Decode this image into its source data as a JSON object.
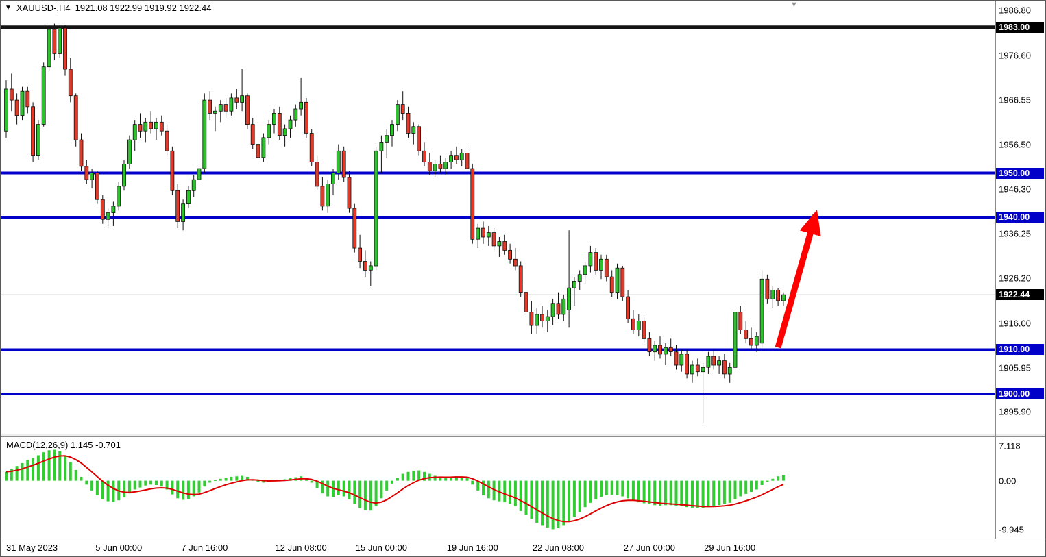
{
  "header": {
    "dropdown_icon": "▼",
    "symbol_period": "XAUUSD-,H4",
    "ohlc": "1921.08 1922.99 1919.92 1922.44"
  },
  "icons": {
    "shift_marker": "▼"
  },
  "indicator_header": {
    "text": "MACD(12,26,9) 1.145 -0.701"
  },
  "x_axis": {
    "labels": [
      {
        "text": "31 May 2023",
        "bar": 0
      },
      {
        "text": "5 Jun 00:00",
        "bar": 21
      },
      {
        "text": "7 Jun 16:00",
        "bar": 37
      },
      {
        "text": "12 Jun 08:00",
        "bar": 55
      },
      {
        "text": "15 Jun 00:00",
        "bar": 70
      },
      {
        "text": "19 Jun 16:00",
        "bar": 87
      },
      {
        "text": "22 Jun 08:00",
        "bar": 103
      },
      {
        "text": "27 Jun 00:00",
        "bar": 120
      },
      {
        "text": "29 Jun 16:00",
        "bar": 135
      }
    ]
  },
  "chart_data": [
    {
      "type": "candlestick",
      "symbol": "XAUUSD-",
      "timeframe": "H4",
      "current_bar": {
        "open": 1921.08,
        "high": 1922.99,
        "low": 1919.92,
        "close": 1922.44
      },
      "ylim": [
        1891,
        1989
      ],
      "up_color": "#2cc22c",
      "down_color": "#e23a2a",
      "wick_color": "#111111",
      "current_price": 1922.44,
      "price_ticks": [
        {
          "value": "1986.80",
          "price": 1986.8,
          "style": "plain"
        },
        {
          "value": "1983.00",
          "price": 1983.0,
          "style": "black-box"
        },
        {
          "value": "1976.60",
          "price": 1976.6,
          "style": "plain"
        },
        {
          "value": "1966.55",
          "price": 1966.55,
          "style": "plain"
        },
        {
          "value": "1956.50",
          "price": 1956.5,
          "style": "plain"
        },
        {
          "value": "1950.00",
          "price": 1950.0,
          "style": "blue-box"
        },
        {
          "value": "1946.30",
          "price": 1946.3,
          "style": "plain"
        },
        {
          "value": "1940.00",
          "price": 1940.0,
          "style": "blue-box"
        },
        {
          "value": "1936.25",
          "price": 1936.25,
          "style": "plain"
        },
        {
          "value": "1926.20",
          "price": 1926.2,
          "style": "plain"
        },
        {
          "value": "1922.44",
          "price": 1922.44,
          "style": "black-box"
        },
        {
          "value": "1916.00",
          "price": 1916.0,
          "style": "plain"
        },
        {
          "value": "1910.00",
          "price": 1910.0,
          "style": "blue-box"
        },
        {
          "value": "1905.95",
          "price": 1905.95,
          "style": "plain"
        },
        {
          "value": "1900.00",
          "price": 1900.0,
          "style": "blue-box"
        },
        {
          "value": "1895.90",
          "price": 1895.9,
          "style": "plain"
        }
      ],
      "hlines": [
        {
          "price": 1983.0,
          "color": "#141414",
          "width": 5
        },
        {
          "price": 1950.0,
          "color": "#0000C8",
          "width": 4
        },
        {
          "price": 1940.0,
          "color": "#0000C8",
          "width": 4
        },
        {
          "price": 1910.0,
          "color": "#0000C8",
          "width": 4
        },
        {
          "price": 1900.0,
          "color": "#0000C8",
          "width": 4
        }
      ],
      "annotations": [
        {
          "type": "arrow",
          "color": "#FF0000",
          "from": {
            "bar": 144,
            "price": 1910.5
          },
          "to": {
            "bar": 151,
            "price": 1940.5
          }
        }
      ],
      "candles": [
        [
          1959.5,
          1971.0,
          1958.0,
          1969.0
        ],
        [
          1969.0,
          1972.5,
          1964.0,
          1966.5
        ],
        [
          1966.5,
          1968.0,
          1961.0,
          1963.0
        ],
        [
          1963.0,
          1969.5,
          1962.0,
          1968.5
        ],
        [
          1968.5,
          1969.5,
          1963.5,
          1965.0
        ],
        [
          1965.0,
          1966.0,
          1952.5,
          1954.0
        ],
        [
          1954.0,
          1962.0,
          1953.0,
          1961.0
        ],
        [
          1961.0,
          1975.0,
          1960.5,
          1974.0
        ],
        [
          1974.0,
          1983.5,
          1973.0,
          1982.5
        ],
        [
          1982.5,
          1983.8,
          1975.5,
          1977.0
        ],
        [
          1977.0,
          1983.5,
          1976.0,
          1982.8
        ],
        [
          1982.8,
          1983.5,
          1972.0,
          1973.5
        ],
        [
          1973.5,
          1976.0,
          1966.0,
          1967.5
        ],
        [
          1967.5,
          1968.0,
          1956.0,
          1957.5
        ],
        [
          1957.5,
          1959.0,
          1950.5,
          1951.5
        ],
        [
          1951.5,
          1953.0,
          1947.5,
          1948.5
        ],
        [
          1948.5,
          1951.0,
          1946.5,
          1950.0
        ],
        [
          1950.0,
          1950.5,
          1943.0,
          1944.0
        ],
        [
          1944.0,
          1945.0,
          1938.5,
          1939.5
        ],
        [
          1939.5,
          1942.0,
          1937.5,
          1941.0
        ],
        [
          1941.0,
          1943.5,
          1938.0,
          1942.5
        ],
        [
          1942.5,
          1948.0,
          1941.5,
          1947.0
        ],
        [
          1947.0,
          1953.0,
          1946.0,
          1952.0
        ],
        [
          1952.0,
          1958.5,
          1951.0,
          1957.5
        ],
        [
          1957.5,
          1962.0,
          1955.0,
          1961.0
        ],
        [
          1961.0,
          1963.5,
          1958.0,
          1959.5
        ],
        [
          1959.5,
          1962.5,
          1957.0,
          1961.5
        ],
        [
          1961.5,
          1964.0,
          1959.0,
          1960.0
        ],
        [
          1960.0,
          1962.5,
          1957.5,
          1961.5
        ],
        [
          1961.5,
          1963.0,
          1958.5,
          1959.5
        ],
        [
          1959.5,
          1961.0,
          1954.0,
          1955.0
        ],
        [
          1955.0,
          1956.0,
          1945.0,
          1946.0
        ],
        [
          1946.0,
          1947.5,
          1937.5,
          1939.0
        ],
        [
          1939.0,
          1944.0,
          1937.0,
          1943.0
        ],
        [
          1943.0,
          1947.0,
          1942.0,
          1946.0
        ],
        [
          1946.0,
          1949.5,
          1944.5,
          1948.5
        ],
        [
          1948.5,
          1952.0,
          1947.5,
          1951.0
        ],
        [
          1951.0,
          1968.0,
          1950.0,
          1966.5
        ],
        [
          1966.5,
          1968.5,
          1962.0,
          1963.5
        ],
        [
          1963.5,
          1965.0,
          1959.5,
          1964.0
        ],
        [
          1964.0,
          1966.5,
          1961.5,
          1965.5
        ],
        [
          1965.5,
          1967.0,
          1962.5,
          1964.0
        ],
        [
          1964.0,
          1968.0,
          1963.0,
          1967.0
        ],
        [
          1967.0,
          1969.0,
          1964.5,
          1966.0
        ],
        [
          1966.0,
          1973.5,
          1964.0,
          1967.5
        ],
        [
          1967.5,
          1968.0,
          1960.0,
          1961.0
        ],
        [
          1961.0,
          1962.5,
          1955.5,
          1956.5
        ],
        [
          1956.5,
          1958.0,
          1952.0,
          1953.5
        ],
        [
          1953.5,
          1959.0,
          1952.5,
          1958.0
        ],
        [
          1958.0,
          1962.0,
          1956.5,
          1961.0
        ],
        [
          1961.0,
          1964.5,
          1959.0,
          1963.5
        ],
        [
          1963.5,
          1965.0,
          1957.5,
          1958.5
        ],
        [
          1958.5,
          1961.0,
          1956.0,
          1960.0
        ],
        [
          1960.0,
          1963.0,
          1958.0,
          1962.0
        ],
        [
          1962.0,
          1965.5,
          1960.5,
          1964.5
        ],
        [
          1964.5,
          1971.5,
          1963.0,
          1966.0
        ],
        [
          1966.0,
          1967.0,
          1958.0,
          1959.0
        ],
        [
          1959.0,
          1960.0,
          1951.5,
          1952.5
        ],
        [
          1952.5,
          1954.0,
          1946.0,
          1947.0
        ],
        [
          1947.0,
          1949.0,
          1941.5,
          1942.5
        ],
        [
          1942.5,
          1948.5,
          1941.0,
          1947.5
        ],
        [
          1947.5,
          1951.0,
          1945.0,
          1950.0
        ],
        [
          1950.0,
          1956.5,
          1948.5,
          1955.0
        ],
        [
          1955.0,
          1956.0,
          1948.0,
          1949.0
        ],
        [
          1949.0,
          1950.5,
          1941.0,
          1942.0
        ],
        [
          1942.0,
          1943.0,
          1932.0,
          1933.0
        ],
        [
          1933.0,
          1936.0,
          1928.5,
          1930.0
        ],
        [
          1930.0,
          1932.5,
          1926.5,
          1928.0
        ],
        [
          1928.0,
          1930.0,
          1924.5,
          1929.0
        ],
        [
          1929.0,
          1956.0,
          1928.0,
          1955.0
        ],
        [
          1955.0,
          1958.5,
          1950.0,
          1957.0
        ],
        [
          1957.0,
          1960.0,
          1953.5,
          1958.5
        ],
        [
          1958.5,
          1962.0,
          1956.0,
          1961.0
        ],
        [
          1961.0,
          1966.5,
          1959.5,
          1965.5
        ],
        [
          1965.5,
          1968.5,
          1962.0,
          1963.5
        ],
        [
          1963.5,
          1965.0,
          1958.0,
          1959.0
        ],
        [
          1959.0,
          1961.5,
          1956.5,
          1960.5
        ],
        [
          1960.5,
          1961.0,
          1954.0,
          1955.0
        ],
        [
          1955.0,
          1957.0,
          1951.5,
          1952.5
        ],
        [
          1952.5,
          1954.5,
          1949.5,
          1950.5
        ],
        [
          1950.5,
          1953.0,
          1949.0,
          1952.0
        ],
        [
          1952.0,
          1954.0,
          1950.0,
          1951.0
        ],
        [
          1951.0,
          1953.5,
          1949.5,
          1952.5
        ],
        [
          1952.5,
          1955.0,
          1951.0,
          1954.0
        ],
        [
          1954.0,
          1956.0,
          1952.0,
          1953.0
        ],
        [
          1953.0,
          1955.5,
          1951.5,
          1954.5
        ],
        [
          1954.5,
          1956.5,
          1950.0,
          1951.0
        ],
        [
          1951.0,
          1952.0,
          1934.0,
          1935.0
        ],
        [
          1935.0,
          1938.5,
          1933.0,
          1937.5
        ],
        [
          1937.5,
          1939.0,
          1934.0,
          1935.5
        ],
        [
          1935.5,
          1938.0,
          1933.5,
          1936.5
        ],
        [
          1936.5,
          1937.5,
          1932.5,
          1933.5
        ],
        [
          1933.5,
          1935.5,
          1931.0,
          1934.5
        ],
        [
          1934.5,
          1936.0,
          1931.5,
          1932.5
        ],
        [
          1932.5,
          1934.0,
          1929.5,
          1930.5
        ],
        [
          1930.5,
          1933.0,
          1928.0,
          1929.0
        ],
        [
          1929.0,
          1930.0,
          1922.0,
          1923.0
        ],
        [
          1923.0,
          1925.0,
          1917.5,
          1918.5
        ],
        [
          1918.5,
          1921.0,
          1913.5,
          1915.5
        ],
        [
          1915.5,
          1919.5,
          1913.5,
          1918.0
        ],
        [
          1918.0,
          1920.0,
          1915.0,
          1916.5
        ],
        [
          1916.5,
          1919.0,
          1914.0,
          1917.5
        ],
        [
          1917.5,
          1921.5,
          1915.5,
          1920.5
        ],
        [
          1920.5,
          1923.0,
          1917.0,
          1918.0
        ],
        [
          1918.0,
          1922.5,
          1916.5,
          1921.5
        ],
        [
          1919.0,
          1937.0,
          1915.0,
          1924.0
        ],
        [
          1924.0,
          1926.5,
          1920.0,
          1925.5
        ],
        [
          1925.5,
          1928.0,
          1923.5,
          1927.0
        ],
        [
          1927.0,
          1930.0,
          1925.0,
          1929.0
        ],
        [
          1929.0,
          1933.5,
          1927.5,
          1932.0
        ],
        [
          1932.0,
          1933.0,
          1927.0,
          1928.0
        ],
        [
          1928.0,
          1931.5,
          1926.0,
          1930.5
        ],
        [
          1930.5,
          1931.5,
          1925.5,
          1926.5
        ],
        [
          1926.5,
          1928.0,
          1922.0,
          1923.0
        ],
        [
          1923.0,
          1929.5,
          1921.5,
          1928.5
        ],
        [
          1928.5,
          1929.0,
          1921.0,
          1922.0
        ],
        [
          1922.0,
          1923.5,
          1916.0,
          1917.0
        ],
        [
          1917.0,
          1919.0,
          1913.5,
          1914.5
        ],
        [
          1914.5,
          1918.0,
          1913.0,
          1916.5
        ],
        [
          1916.5,
          1917.5,
          1911.5,
          1912.5
        ],
        [
          1912.5,
          1914.0,
          1908.5,
          1909.5
        ],
        [
          1909.5,
          1912.0,
          1907.5,
          1911.0
        ],
        [
          1911.0,
          1913.0,
          1908.0,
          1909.0
        ],
        [
          1909.0,
          1911.5,
          1906.5,
          1910.5
        ],
        [
          1910.5,
          1912.5,
          1908.5,
          1909.5
        ],
        [
          1909.5,
          1911.0,
          1905.5,
          1906.5
        ],
        [
          1906.5,
          1910.0,
          1905.0,
          1909.0
        ],
        [
          1909.0,
          1910.0,
          1903.5,
          1904.5
        ],
        [
          1904.5,
          1907.5,
          1902.5,
          1906.5
        ],
        [
          1906.5,
          1908.0,
          1904.0,
          1905.0
        ],
        [
          1905.0,
          1907.0,
          1893.5,
          1906.0
        ],
        [
          1906.0,
          1909.5,
          1904.5,
          1908.5
        ],
        [
          1908.5,
          1910.0,
          1905.5,
          1906.5
        ],
        [
          1906.5,
          1908.5,
          1904.5,
          1907.5
        ],
        [
          1907.5,
          1909.0,
          1903.5,
          1904.5
        ],
        [
          1904.5,
          1907.0,
          1902.5,
          1906.0
        ],
        [
          1906.0,
          1919.5,
          1905.0,
          1918.5
        ],
        [
          1918.5,
          1920.0,
          1913.5,
          1914.5
        ],
        [
          1914.5,
          1916.5,
          1911.5,
          1912.5
        ],
        [
          1912.5,
          1915.0,
          1910.0,
          1911.0
        ],
        [
          1911.0,
          1914.0,
          1909.5,
          1913.0
        ],
        [
          1911.5,
          1928.0,
          1910.5,
          1926.0
        ],
        [
          1926.0,
          1927.0,
          1920.5,
          1921.5
        ],
        [
          1921.5,
          1924.5,
          1919.5,
          1923.5
        ],
        [
          1923.5,
          1924.0,
          1919.9,
          1921.1
        ],
        [
          1921.08,
          1922.99,
          1919.92,
          1922.44
        ]
      ]
    },
    {
      "type": "bar",
      "title": "MACD(12,26,9)",
      "params": "12,26,9",
      "main_value": 1.145,
      "signal_value": -0.701,
      "ylim": [
        -11.8,
        8.9
      ],
      "histogram_color": "#32CD32",
      "signal_color": "#DD0000",
      "signal_period": 9,
      "ticks": [
        {
          "value": "7.118",
          "v": 7.118
        },
        {
          "value": "0.00",
          "v": 0
        },
        {
          "value": "-9.945",
          "v": -9.945
        }
      ],
      "values": [
        1.8,
        2.4,
        3.0,
        3.6,
        4.2,
        4.6,
        5.2,
        5.8,
        6.2,
        6.3,
        6.0,
        5.2,
        3.8,
        2.2,
        0.8,
        -0.8,
        -2.0,
        -3.0,
        -3.8,
        -4.2,
        -4.3,
        -4.0,
        -3.4,
        -2.6,
        -1.8,
        -1.4,
        -1.0,
        -0.8,
        -0.9,
        -1.2,
        -1.8,
        -2.8,
        -3.6,
        -3.9,
        -3.7,
        -3.2,
        -2.4,
        -1.2,
        -0.4,
        0.1,
        0.4,
        0.6,
        0.8,
        0.9,
        1.0,
        0.8,
        0.3,
        -0.2,
        -0.4,
        -0.3,
        0.0,
        0.2,
        0.3,
        0.5,
        0.7,
        0.9,
        0.5,
        -0.4,
        -1.5,
        -2.6,
        -3.2,
        -3.3,
        -3.0,
        -3.2,
        -3.8,
        -4.8,
        -5.6,
        -6.0,
        -6.1,
        -5.2,
        -3.6,
        -2.0,
        -0.6,
        0.6,
        1.4,
        1.8,
        2.0,
        2.1,
        1.8,
        1.4,
        1.0,
        0.8,
        0.7,
        0.8,
        0.9,
        0.8,
        0.5,
        -0.8,
        -2.0,
        -3.0,
        -3.6,
        -4.0,
        -4.2,
        -4.4,
        -4.7,
        -5.2,
        -6.2,
        -7.0,
        -7.8,
        -8.6,
        -9.2,
        -9.6,
        -9.9,
        -9.7,
        -9.2,
        -8.4,
        -7.4,
        -6.4,
        -5.4,
        -4.5,
        -3.8,
        -3.3,
        -3.0,
        -2.9,
        -3.0,
        -3.2,
        -3.6,
        -4.1,
        -4.4,
        -4.6,
        -4.8,
        -5.0,
        -5.1,
        -5.0,
        -5.0,
        -5.1,
        -5.2,
        -5.4,
        -5.5,
        -5.5,
        -5.6,
        -5.4,
        -5.2,
        -5.0,
        -4.8,
        -4.5,
        -3.8,
        -3.2,
        -2.7,
        -2.3,
        -1.8,
        -0.9,
        -0.2,
        0.4,
        0.9,
        1.145
      ]
    }
  ]
}
